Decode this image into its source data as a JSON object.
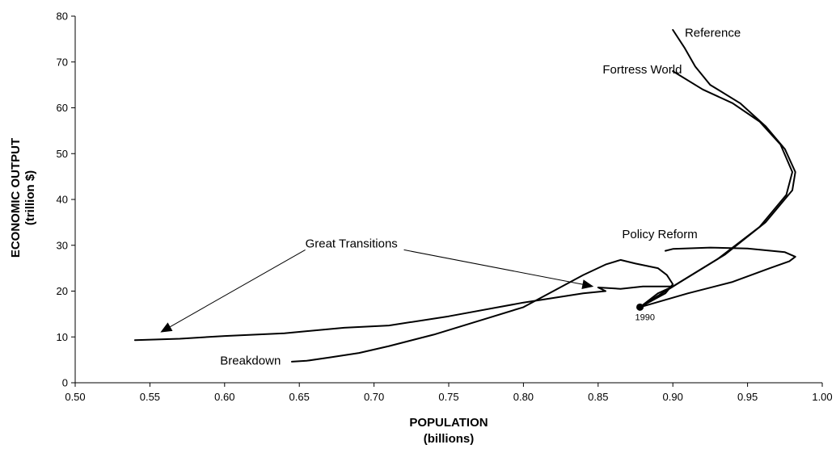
{
  "chart_data": {
    "type": "line",
    "xlabel": [
      "POPULATION",
      "(billions)"
    ],
    "ylabel": [
      "ECONOMIC OUTPUT",
      "(trillion $)"
    ],
    "xlim": [
      0.5,
      1.0
    ],
    "ylim": [
      0,
      80
    ],
    "x_ticks": [
      "0.50",
      "0.55",
      "0.60",
      "0.65",
      "0.70",
      "0.75",
      "0.80",
      "0.85",
      "0.90",
      "0.95",
      "1.00"
    ],
    "y_ticks": [
      "0",
      "10",
      "20",
      "30",
      "40",
      "50",
      "60",
      "70",
      "80"
    ],
    "start_point": {
      "label": "1990",
      "x": 0.878,
      "y": 16.5
    },
    "series": [
      {
        "name": "Reference",
        "points": [
          [
            0.878,
            16.5
          ],
          [
            0.905,
            22
          ],
          [
            0.935,
            28
          ],
          [
            0.962,
            35
          ],
          [
            0.98,
            42
          ],
          [
            0.982,
            46
          ],
          [
            0.975,
            51
          ],
          [
            0.962,
            56
          ],
          [
            0.945,
            61
          ],
          [
            0.925,
            65
          ],
          [
            0.915,
            69
          ],
          [
            0.908,
            73
          ],
          [
            0.9,
            77
          ]
        ]
      },
      {
        "name": "Fortress World",
        "points": [
          [
            0.878,
            16.5
          ],
          [
            0.9,
            21
          ],
          [
            0.93,
            27
          ],
          [
            0.958,
            34
          ],
          [
            0.976,
            41
          ],
          [
            0.98,
            46
          ],
          [
            0.972,
            52
          ],
          [
            0.958,
            57
          ],
          [
            0.94,
            61
          ],
          [
            0.92,
            64
          ],
          [
            0.9,
            68
          ]
        ]
      },
      {
        "name": "Policy Reform",
        "points": [
          [
            0.878,
            16.5
          ],
          [
            0.91,
            19.5
          ],
          [
            0.94,
            22
          ],
          [
            0.965,
            25
          ],
          [
            0.978,
            26.5
          ],
          [
            0.982,
            27.5
          ],
          [
            0.975,
            28.5
          ],
          [
            0.95,
            29.3
          ],
          [
            0.925,
            29.5
          ],
          [
            0.9,
            29.2
          ],
          [
            0.895,
            28.8
          ]
        ]
      },
      {
        "name": "Breakdown",
        "points": [
          [
            0.878,
            16.5
          ],
          [
            0.895,
            19.5
          ],
          [
            0.9,
            21.5
          ],
          [
            0.896,
            23.5
          ],
          [
            0.89,
            25
          ],
          [
            0.875,
            26
          ],
          [
            0.865,
            26.8
          ],
          [
            0.855,
            25.8
          ],
          [
            0.84,
            23.5
          ],
          [
            0.82,
            20
          ],
          [
            0.8,
            16.5
          ],
          [
            0.77,
            13.5
          ],
          [
            0.74,
            10.5
          ],
          [
            0.71,
            8
          ],
          [
            0.69,
            6.5
          ],
          [
            0.67,
            5.5
          ],
          [
            0.655,
            4.8
          ],
          [
            0.645,
            4.6
          ]
        ]
      },
      {
        "name": "Great Transitions",
        "points": [
          [
            0.878,
            16.5
          ],
          [
            0.89,
            19.5
          ],
          [
            0.9,
            21
          ],
          [
            0.88,
            21
          ],
          [
            0.865,
            20.5
          ],
          [
            0.85,
            20.8
          ],
          [
            0.855,
            20
          ],
          [
            0.84,
            19.5
          ],
          [
            0.8,
            17.5
          ],
          [
            0.75,
            14.5
          ],
          [
            0.71,
            12.5
          ],
          [
            0.68,
            12
          ],
          [
            0.64,
            10.8
          ],
          [
            0.6,
            10.2
          ],
          [
            0.57,
            9.6
          ],
          [
            0.54,
            9.3
          ]
        ]
      }
    ],
    "annotations": [
      {
        "text": "Reference",
        "x": 0.908,
        "y": 75.5
      },
      {
        "text": "Fortress World",
        "x": 0.853,
        "y": 67.5
      },
      {
        "text": "Policy Reform",
        "x": 0.866,
        "y": 31.5
      },
      {
        "text": "Breakdown",
        "x": 0.597,
        "y": 4.0
      },
      {
        "text": "Great Transitions",
        "x": 0.654,
        "y": 29.5
      }
    ],
    "arrows": [
      {
        "from": [
          0.654,
          29.0
        ],
        "to": [
          0.557,
          11.0
        ]
      },
      {
        "from": [
          0.72,
          29.0
        ],
        "to": [
          0.847,
          21.0
        ]
      }
    ]
  }
}
